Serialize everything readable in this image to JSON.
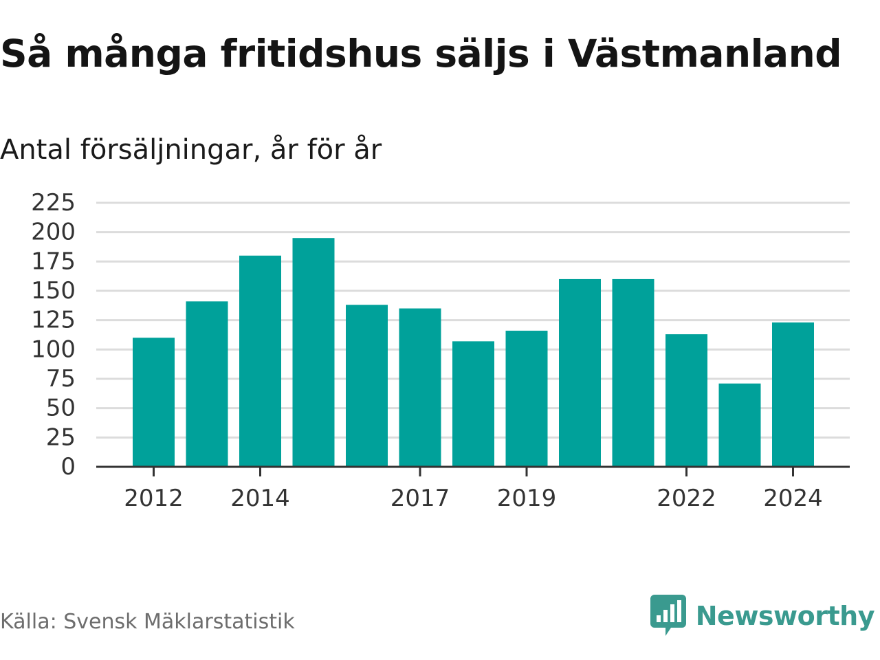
{
  "title": "Så många fritidshus säljs i Västmanland",
  "subtitle": "Antal försäljningar, år för år",
  "source": "Källa: Svensk Mäklarstatistik",
  "brand": {
    "name": "Newsworthy",
    "icon": "newsworthy-logo-icon",
    "color": "#3a9a8f"
  },
  "colors": {
    "bar": "#00a19a",
    "grid": "#dcdcdc",
    "axis": "#333333",
    "tick_label": "#333333"
  },
  "chart_data": {
    "type": "bar",
    "title": "Så många fritidshus säljs i Västmanland",
    "subtitle": "Antal försäljningar, år för år",
    "xlabel": "",
    "ylabel": "",
    "categories": [
      "2012",
      "2013",
      "2014",
      "2015",
      "2016",
      "2017",
      "2018",
      "2019",
      "2020",
      "2021",
      "2022",
      "2023",
      "2024"
    ],
    "values": [
      110,
      141,
      180,
      195,
      138,
      135,
      107,
      116,
      160,
      160,
      113,
      71,
      123
    ],
    "x_tick_labels": [
      "2012",
      "2014",
      "2017",
      "2019",
      "2022",
      "2024"
    ],
    "y_ticks": [
      0,
      25,
      50,
      75,
      100,
      125,
      150,
      175,
      200,
      225
    ],
    "ylim": [
      0,
      225
    ],
    "grid": true,
    "legend": "none"
  }
}
